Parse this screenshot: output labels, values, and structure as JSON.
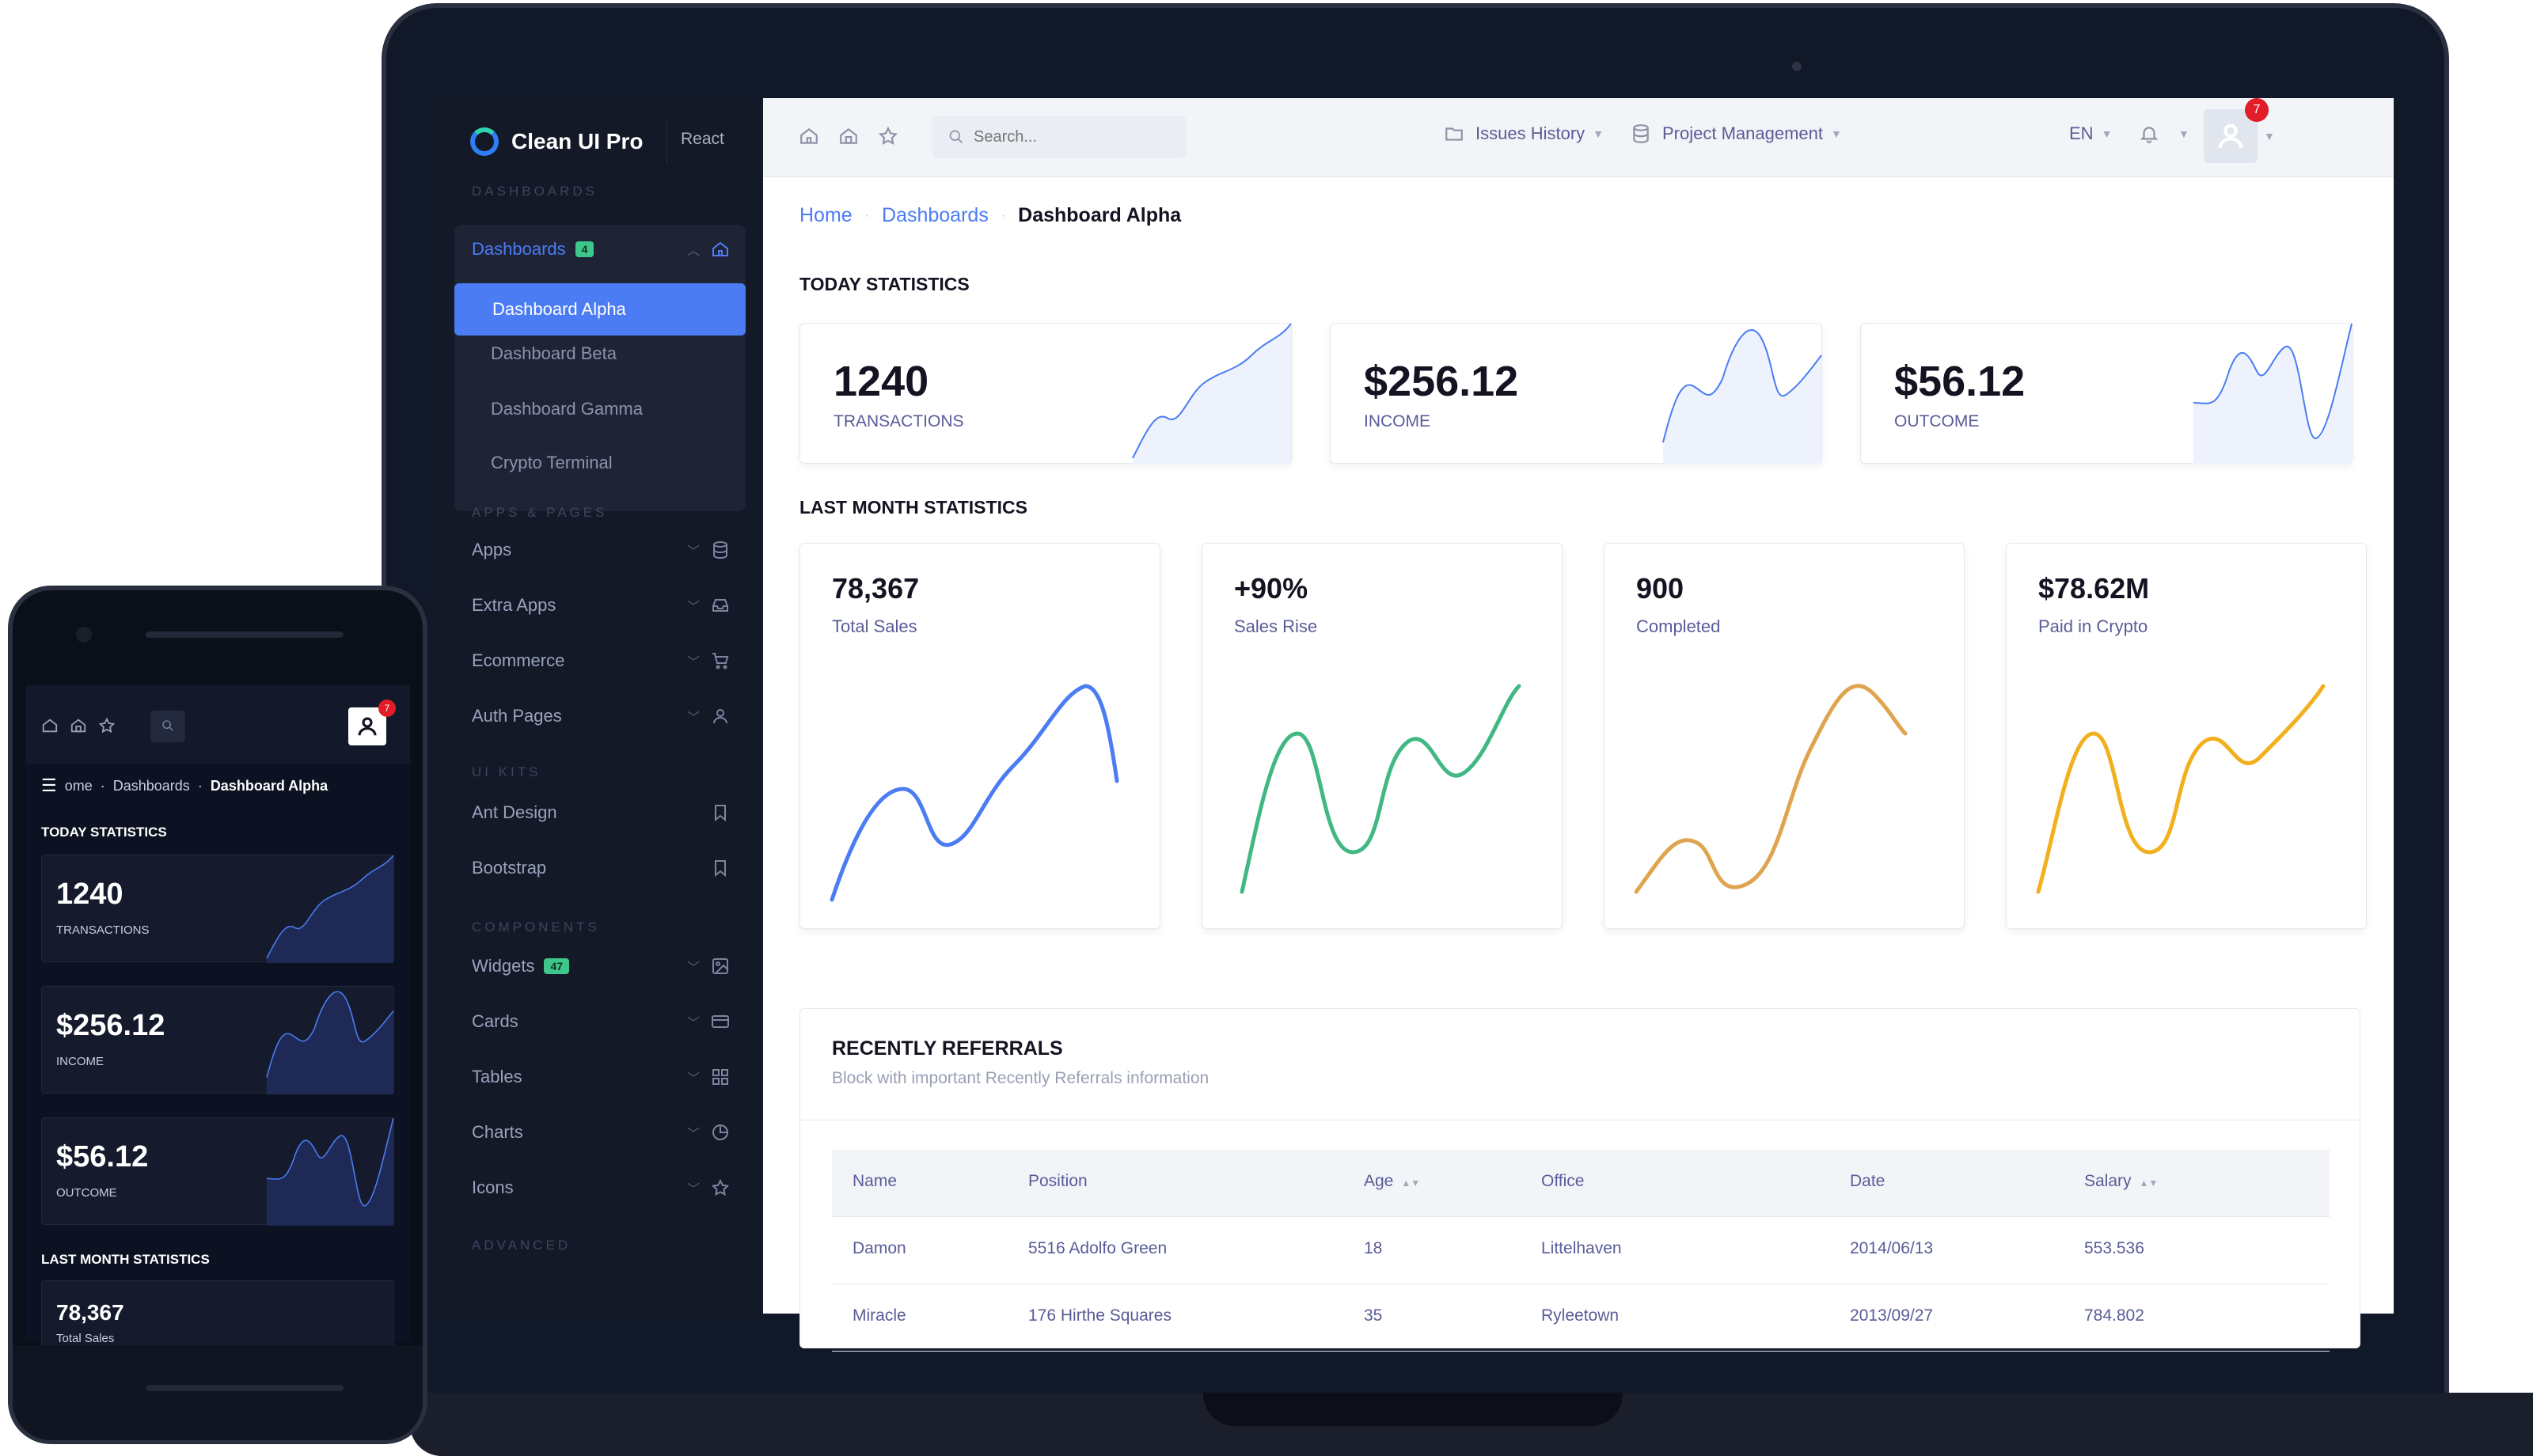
{
  "sidebar": {
    "brand": "Clean UI Pro",
    "tag": "React",
    "sections": [
      "Dashboards",
      "Apps & Pages",
      "UI Kits",
      "Components",
      "Advanced"
    ],
    "dashboards_group": {
      "label": "Dashboards",
      "badge": "4",
      "children": [
        "Dashboard Alpha",
        "Dashboard Beta",
        "Dashboard Gamma",
        "Crypto Terminal"
      ]
    },
    "apps_items": [
      "Apps",
      "Extra Apps",
      "Ecommerce",
      "Auth Pages"
    ],
    "uikit_items": [
      "Ant Design",
      "Bootstrap"
    ],
    "component_items": [
      {
        "label": "Widgets",
        "badge": "47"
      },
      {
        "label": "Cards"
      },
      {
        "label": "Tables"
      },
      {
        "label": "Charts"
      },
      {
        "label": "Icons"
      }
    ]
  },
  "topbar": {
    "search_placeholder": "Search...",
    "menu1": "Issues History",
    "menu2": "Project Management",
    "lang": "EN",
    "notif_count": "7"
  },
  "breadcrumb": {
    "home": "Home",
    "dashboards": "Dashboards",
    "current": "Dashboard Alpha"
  },
  "today": {
    "title": "TODAY STATISTICS",
    "cards": [
      {
        "value": "1240",
        "label": "TRANSACTIONS"
      },
      {
        "value": "$256.12",
        "label": "INCOME"
      },
      {
        "value": "$56.12",
        "label": "OUTCOME"
      }
    ]
  },
  "last_month": {
    "title": "LAST MONTH STATISTICS",
    "cards": [
      {
        "value": "78,367",
        "label": "Total Sales",
        "color": "#4b7cf3"
      },
      {
        "value": "+90%",
        "label": "Sales Rise",
        "color": "#41b883"
      },
      {
        "value": "900",
        "label": "Completed",
        "color": "#dfa44f"
      },
      {
        "value": "$78.62M",
        "label": "Paid in Crypto",
        "color": "#f2b01e"
      }
    ]
  },
  "referrals": {
    "title": "RECENTLY REFERRALS",
    "subtitle": "Block with important Recently Referrals information",
    "columns": [
      "Name",
      "Position",
      "Age",
      "Office",
      "Date",
      "Salary"
    ],
    "rows": [
      [
        "Damon",
        "5516 Adolfo Green",
        "18",
        "Littelhaven",
        "2014/06/13",
        "553.536"
      ],
      [
        "Miracle",
        "176 Hirthe Squares",
        "35",
        "Ryleetown",
        "2013/09/27",
        "784.802"
      ]
    ]
  },
  "phone": {
    "crumb_home": "ome",
    "crumb_dashboards": "Dashboards",
    "crumb_current": "Dashboard Alpha",
    "today_title": "TODAY STATISTICS",
    "cards": [
      {
        "value": "1240",
        "label": "TRANSACTIONS"
      },
      {
        "value": "$256.12",
        "label": "INCOME"
      },
      {
        "value": "$56.12",
        "label": "OUTCOME"
      }
    ],
    "last_month_title": "LAST MONTH STATISTICS",
    "last_card_value": "78,367",
    "last_card_label": "Total Sales",
    "notif_count": "7"
  },
  "icons": {
    "home": "home-icon",
    "star": "star-icon",
    "search": "search-icon",
    "folder": "folder-icon",
    "database": "database-icon",
    "bell": "bell-icon",
    "user": "user-icon"
  }
}
